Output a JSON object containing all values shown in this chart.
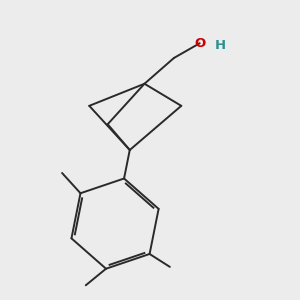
{
  "bg_color": "#ececec",
  "bond_color": "#2a2a2a",
  "bond_width": 1.4,
  "O_color": "#cc0000",
  "H_color": "#2a9090",
  "font_size": 9.5,
  "figsize": [
    3.0,
    3.0
  ],
  "dpi": 100
}
